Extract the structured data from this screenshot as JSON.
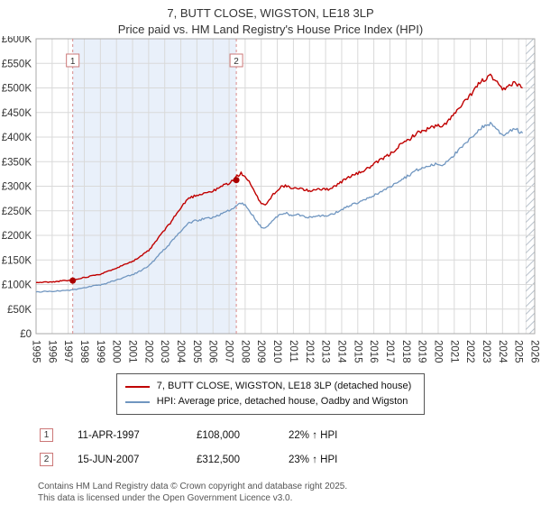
{
  "header": {
    "title": "7, BUTT CLOSE, WIGSTON, LE18 3LP",
    "subtitle": "Price paid vs. HM Land Registry's House Price Index (HPI)"
  },
  "chart_data": {
    "type": "line",
    "title": "7, BUTT CLOSE, WIGSTON, LE18 3LP — Price paid vs. HPI",
    "x_range": [
      1995,
      2026
    ],
    "y_range": [
      0,
      600
    ],
    "y_unit": "GBP thousands",
    "x_ticks": [
      1995,
      1996,
      1997,
      1998,
      1999,
      2000,
      2001,
      2002,
      2003,
      2004,
      2005,
      2006,
      2007,
      2008,
      2009,
      2010,
      2011,
      2012,
      2013,
      2014,
      2015,
      2016,
      2017,
      2018,
      2019,
      2020,
      2021,
      2022,
      2023,
      2024,
      2025,
      2026
    ],
    "y_ticks": [
      0,
      50,
      100,
      150,
      200,
      250,
      300,
      350,
      400,
      450,
      500,
      550,
      600
    ],
    "y_tick_labels": [
      "£0",
      "£50K",
      "£100K",
      "£150K",
      "£200K",
      "£250K",
      "£300K",
      "£350K",
      "£400K",
      "£450K",
      "£500K",
      "£550K",
      "£600K"
    ],
    "shaded_region": [
      1997.28,
      2007.45
    ],
    "hatch_region": [
      2025.45,
      2026
    ],
    "marker_label_y": 556,
    "colors": {
      "property_line": "#c00000",
      "hpi_line": "#7096c0",
      "shade": "#e9f0fa",
      "sale_line": "#d88a8a",
      "sale_dot": "#aa0000",
      "marker_box": "#cc7777",
      "grid": "#d9d9d9",
      "border": "#a9a9a9"
    },
    "series": [
      {
        "name": "7, BUTT CLOSE, WIGSTON, LE18 3LP (detached house)",
        "color": "#c00000",
        "x_start": 1995,
        "x_step": 0.25,
        "seed": 11,
        "values": [
          104,
          104,
          105,
          105,
          105,
          106,
          107,
          108,
          108,
          109,
          110,
          113,
          114,
          116,
          119,
          120,
          121,
          124,
          127,
          131,
          134,
          137,
          141,
          145,
          147,
          152,
          157,
          163,
          169,
          179,
          190,
          202,
          211,
          221,
          233,
          245,
          255,
          267,
          276,
          279,
          282,
          284,
          287,
          288,
          290,
          294,
          299,
          304,
          306,
          312,
          321,
          326,
          320,
          308,
          293,
          278,
          266,
          262,
          272,
          284,
          292,
          299,
          301,
          297,
          294,
          297,
          295,
          292,
          290,
          293,
          295,
          294,
          293,
          295,
          299,
          304,
          309,
          315,
          320,
          323,
          326,
          330,
          334,
          339,
          344,
          350,
          355,
          360,
          365,
          372,
          380,
          386,
          391,
          397,
          404,
          409,
          412,
          415,
          419,
          421,
          423,
          419,
          429,
          439,
          446,
          456,
          466,
          475,
          485,
          497,
          507,
          515,
          519,
          524,
          517,
          505,
          495,
          500,
          507,
          512,
          505,
          500
        ]
      },
      {
        "name": "HPI: Average price, detached house, Oadby and Wigston",
        "color": "#7096c0",
        "x_start": 1995,
        "x_step": 0.25,
        "seed": 23,
        "values": [
          85,
          85,
          86,
          86,
          86,
          87,
          87,
          88,
          88,
          89,
          90,
          92,
          93,
          95,
          97,
          98,
          99,
          101,
          104,
          107,
          109,
          112,
          115,
          118,
          120,
          124,
          128,
          133,
          138,
          146,
          155,
          165,
          172,
          180,
          190,
          200,
          208,
          218,
          225,
          228,
          230,
          232,
          234,
          235,
          237,
          240,
          244,
          248,
          250,
          254,
          262,
          266,
          261,
          251,
          239,
          227,
          217,
          214,
          222,
          232,
          238,
          244,
          246,
          242,
          240,
          242,
          241,
          238,
          237,
          239,
          241,
          240,
          239,
          241,
          244,
          248,
          252,
          257,
          261,
          264,
          266,
          269,
          273,
          277,
          281,
          286,
          290,
          294,
          298,
          304,
          310,
          315,
          319,
          324,
          330,
          334,
          336,
          339,
          342,
          344,
          345,
          342,
          350,
          358,
          364,
          372,
          380,
          388,
          396,
          406,
          414,
          420,
          424,
          428,
          422,
          412,
          404,
          408,
          414,
          418,
          412,
          408
        ]
      }
    ],
    "markers": [
      {
        "label": "1",
        "x": 1997.28,
        "y": 108
      },
      {
        "label": "2",
        "x": 2007.45,
        "y": 312.5
      }
    ]
  },
  "transactions": [
    {
      "num": "1",
      "date": "11-APR-1997",
      "price": "£108,000",
      "hpi": "22% ↑ HPI"
    },
    {
      "num": "2",
      "date": "15-JUN-2007",
      "price": "£312,500",
      "hpi": "23% ↑ HPI"
    }
  ],
  "footer": {
    "line1": "Contains HM Land Registry data © Crown copyright and database right 2025.",
    "line2": "This data is licensed under the Open Government Licence v3.0."
  }
}
